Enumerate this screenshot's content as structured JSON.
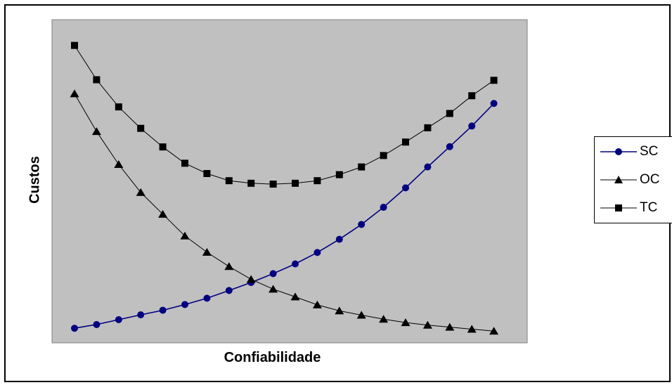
{
  "chart_data": {
    "type": "line",
    "xlabel": "Confiabilidade",
    "ylabel": "Custos",
    "x": [
      1,
      2,
      3,
      4,
      5,
      6,
      7,
      8,
      9,
      10,
      11,
      12,
      13,
      14,
      15,
      16,
      17,
      18,
      19,
      20
    ],
    "ylim": [
      0,
      100
    ],
    "grid": false,
    "legend_position": "right",
    "plot_background": "#C0C0C0",
    "series": [
      {
        "name": "SC",
        "marker": "circle",
        "color": "#000080",
        "values": [
          5.1,
          6.4,
          8.1,
          9.8,
          11.4,
          13.4,
          15.6,
          18.3,
          21.1,
          24.2,
          27.6,
          31.6,
          36.2,
          41.4,
          47.4,
          54.2,
          61.5,
          68.6,
          75.8,
          83.7
        ]
      },
      {
        "name": "OC",
        "marker": "triangle",
        "color": "#000000",
        "values": [
          87.1,
          73.9,
          62.4,
          52.6,
          45.0,
          37.4,
          31.7,
          26.7,
          22.2,
          18.8,
          16.1,
          13.3,
          11.2,
          9.7,
          8.3,
          7.1,
          6.2,
          5.5,
          4.8,
          4.1
        ]
      },
      {
        "name": "TC",
        "marker": "square",
        "color": "#000000",
        "values": [
          104.0,
          92.0,
          82.5,
          75.0,
          68.5,
          62.8,
          59.2,
          56.7,
          55.8,
          55.5,
          55.8,
          56.7,
          58.8,
          61.5,
          65.5,
          70.2,
          75.2,
          80.2,
          86.4,
          91.8
        ]
      }
    ]
  }
}
